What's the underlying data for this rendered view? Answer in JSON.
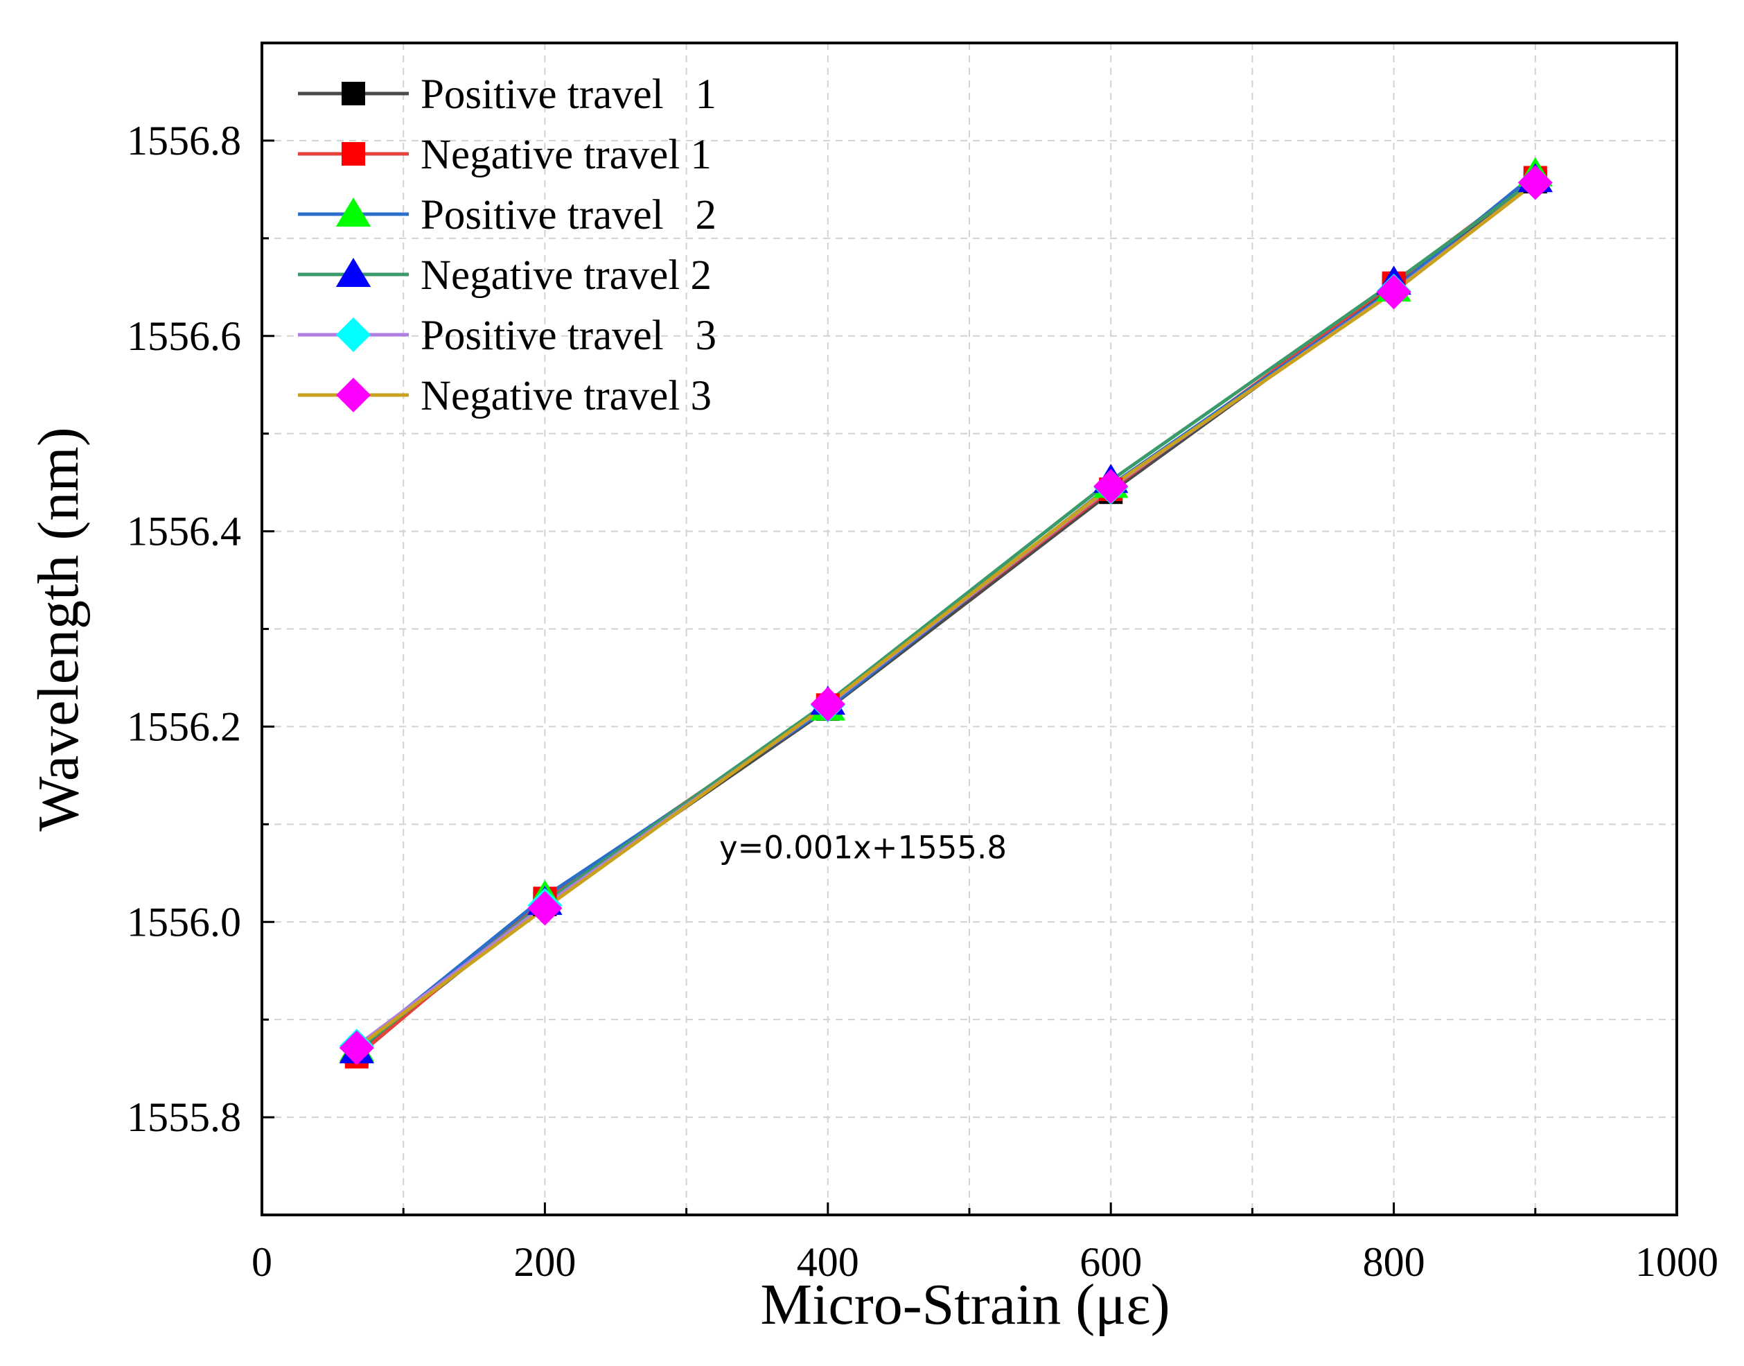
{
  "chart_data": {
    "type": "line",
    "xlabel": "Micro-Strain (με)",
    "ylabel": "Wavelength (nm)",
    "xlim": [
      0,
      1000
    ],
    "ylim": [
      1555.7,
      1556.9
    ],
    "xticks": [
      0,
      200,
      400,
      600,
      800,
      1000
    ],
    "xtick_labels": [
      "0",
      "200",
      "400",
      "600",
      "800",
      "1000"
    ],
    "xminor": [
      100,
      300,
      500,
      700,
      900
    ],
    "yticks": [
      1555.8,
      1556.0,
      1556.2,
      1556.4,
      1556.6,
      1556.8
    ],
    "ytick_labels": [
      "1555.8",
      "1556.0",
      "1556.2",
      "1556.4",
      "1556.6",
      "1556.8"
    ],
    "yminor": [
      1555.9,
      1556.1,
      1556.3,
      1556.5,
      1556.7
    ],
    "grid": true,
    "legend_position": "top-left",
    "annotation": {
      "text": "y=0.001x+1555.8",
      "x": 420,
      "y": 1556.065
    },
    "x": [
      67,
      200,
      400,
      600,
      800,
      900
    ],
    "series": [
      {
        "name": "Positive travel   1",
        "line_color": "#4a4a4a",
        "marker": "square",
        "marker_color": "#000000",
        "values": [
          1555.866,
          1556.018,
          1556.218,
          1556.44,
          1556.65,
          1556.758
        ]
      },
      {
        "name": "Negative travel 1",
        "line_color": "#e8403a",
        "marker": "square",
        "marker_color": "#ff0000",
        "values": [
          1555.862,
          1556.024,
          1556.222,
          1556.443,
          1556.654,
          1556.762
        ]
      },
      {
        "name": "Positive travel   2",
        "line_color": "#2a6fc9",
        "marker": "triangle-up",
        "marker_color": "#00ff00",
        "values": [
          1555.87,
          1556.026,
          1556.219,
          1556.447,
          1556.648,
          1556.766
        ]
      },
      {
        "name": "Negative travel 2",
        "line_color": "#3a9a6a",
        "marker": "triangle-up",
        "marker_color": "#0000ff",
        "values": [
          1555.868,
          1556.02,
          1556.225,
          1556.452,
          1556.655,
          1556.76
        ]
      },
      {
        "name": "Positive travel   3",
        "line_color": "#b07ee0",
        "marker": "diamond",
        "marker_color": "#00ffff",
        "values": [
          1555.873,
          1556.017,
          1556.222,
          1556.445,
          1556.646,
          1556.757
        ]
      },
      {
        "name": "Negative travel 3",
        "line_color": "#c9a11c",
        "marker": "diamond",
        "marker_color": "#ff00ff",
        "values": [
          1555.871,
          1556.014,
          1556.223,
          1556.446,
          1556.645,
          1556.757
        ]
      }
    ]
  }
}
